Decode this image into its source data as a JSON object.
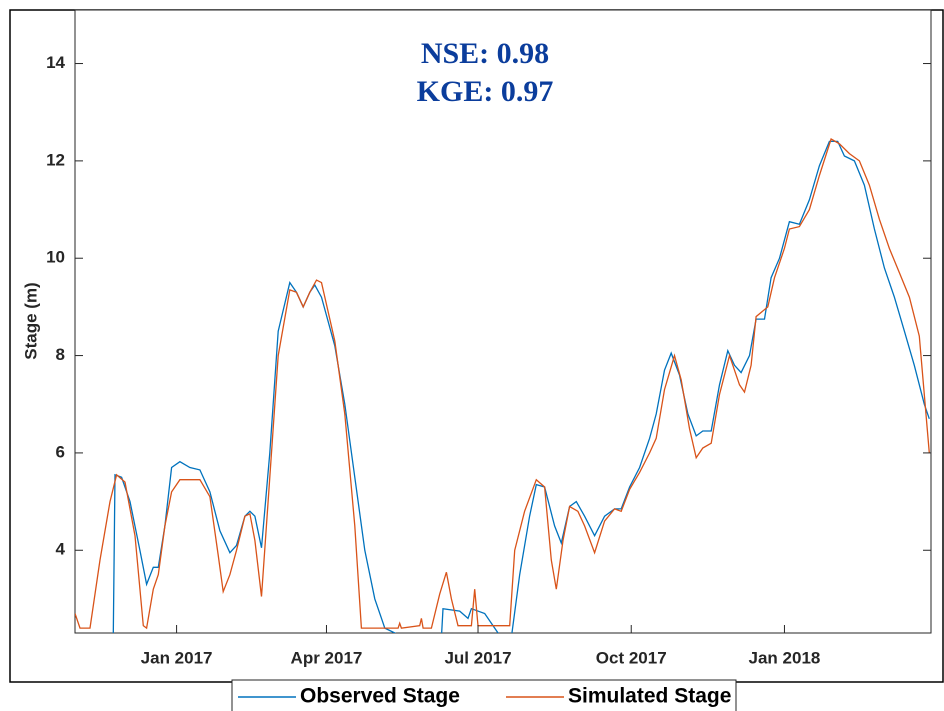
{
  "chart_data": {
    "type": "line",
    "ylabel": "Stage (m)",
    "annotations": [
      "NSE:   0.98",
      "KGE:  0.97"
    ],
    "xlim": [
      "2016-11-01",
      "2018-03-30"
    ],
    "xticks": [
      {
        "value": "2017-01-01",
        "label": "Jan 2017"
      },
      {
        "value": "2017-04-01",
        "label": "Apr 2017"
      },
      {
        "value": "2017-07-01",
        "label": "Jul 2017"
      },
      {
        "value": "2017-10-01",
        "label": "Oct 2017"
      },
      {
        "value": "2018-01-01",
        "label": "Jan 2018"
      }
    ],
    "ylim": [
      2.3,
      15.1
    ],
    "yticks": [
      4,
      6,
      8,
      10,
      12,
      14
    ],
    "grid": false,
    "legend": "bottom",
    "series": [
      {
        "name": "Observed Stage",
        "color": "#0072bd",
        "x": [
          "2016-11-24",
          "2016-11-25",
          "2016-11-29",
          "2016-12-04",
          "2016-12-10",
          "2016-12-14",
          "2016-12-18",
          "2016-12-21",
          "2016-12-25",
          "2016-12-29",
          "2017-01-03",
          "2017-01-09",
          "2017-01-15",
          "2017-01-21",
          "2017-01-27",
          "2017-02-02",
          "2017-02-06",
          "2017-02-11",
          "2017-02-14",
          "2017-02-17",
          "2017-02-21",
          "2017-02-26",
          "2017-03-03",
          "2017-03-10",
          "2017-03-14",
          "2017-03-18",
          "2017-03-22",
          "2017-03-25",
          "2017-03-29",
          "2017-04-06",
          "2017-04-12",
          "2017-04-18",
          "2017-04-24",
          "2017-04-30",
          "2017-05-06",
          "2017-05-12",
          "2017-05-18",
          "2017-05-22",
          "2017-06-01",
          "2017-06-09",
          "2017-06-10",
          "2017-06-20",
          "2017-06-25",
          "2017-06-27",
          "2017-07-05",
          "2017-07-11",
          "2017-07-17",
          "2017-07-21",
          "2017-07-26",
          "2017-08-01",
          "2017-08-05",
          "2017-08-10",
          "2017-08-16",
          "2017-08-20",
          "2017-08-25",
          "2017-08-29",
          "2017-09-03",
          "2017-09-09",
          "2017-09-15",
          "2017-09-21",
          "2017-09-25",
          "2017-09-30",
          "2017-10-06",
          "2017-10-12",
          "2017-10-16",
          "2017-10-21",
          "2017-10-25",
          "2017-10-30",
          "2017-11-04",
          "2017-11-09",
          "2017-11-13",
          "2017-11-18",
          "2017-11-23",
          "2017-11-28",
          "2017-12-02",
          "2017-12-06",
          "2017-12-11",
          "2017-12-15",
          "2017-12-20",
          "2017-12-24",
          "2017-12-29",
          "2018-01-04",
          "2018-01-10",
          "2018-01-16",
          "2018-01-22",
          "2018-01-28",
          "2018-02-02",
          "2018-02-06",
          "2018-02-12",
          "2018-02-18",
          "2018-02-24",
          "2018-03-02",
          "2018-03-08",
          "2018-03-14",
          "2018-03-20",
          "2018-03-26",
          "2018-03-29"
        ],
        "values": [
          2.3,
          5.55,
          5.5,
          5.0,
          4.0,
          3.3,
          3.65,
          3.65,
          4.5,
          5.7,
          5.82,
          5.7,
          5.65,
          5.2,
          4.4,
          3.95,
          4.1,
          4.7,
          4.8,
          4.7,
          4.05,
          6.0,
          8.5,
          9.5,
          9.3,
          9.0,
          9.3,
          9.45,
          9.2,
          8.2,
          7.0,
          5.5,
          4.0,
          3.0,
          2.4,
          2.3,
          2.2,
          2.1,
          null,
          2.2,
          2.8,
          2.75,
          2.6,
          2.8,
          2.7,
          2.4,
          2.1,
          2.2,
          3.5,
          4.7,
          5.35,
          5.3,
          4.5,
          4.15,
          4.9,
          5.0,
          4.7,
          4.3,
          4.7,
          4.85,
          4.85,
          5.3,
          5.7,
          6.3,
          6.8,
          7.7,
          8.05,
          7.6,
          6.8,
          6.35,
          6.45,
          6.45,
          7.4,
          8.1,
          7.8,
          7.65,
          8.0,
          8.75,
          8.75,
          9.6,
          10.0,
          10.75,
          10.7,
          11.2,
          11.9,
          12.4,
          12.4,
          12.1,
          12.0,
          11.5,
          10.6,
          9.8,
          9.2,
          8.5,
          7.8,
          7.0,
          6.7
        ]
      },
      {
        "name": "Simulated Stage",
        "color": "#d95319",
        "x": [
          "2016-11-01",
          "2016-11-04",
          "2016-11-10",
          "2016-11-16",
          "2016-11-22",
          "2016-11-26",
          "2016-12-01",
          "2016-12-07",
          "2016-12-12",
          "2016-12-14",
          "2016-12-18",
          "2016-12-21",
          "2016-12-25",
          "2016-12-29",
          "2017-01-03",
          "2017-01-15",
          "2017-01-21",
          "2017-01-26",
          "2017-01-29",
          "2017-02-02",
          "2017-02-06",
          "2017-02-11",
          "2017-02-14",
          "2017-02-17",
          "2017-02-21",
          "2017-02-26",
          "2017-03-03",
          "2017-03-10",
          "2017-03-14",
          "2017-03-18",
          "2017-03-22",
          "2017-03-26",
          "2017-03-29",
          "2017-04-06",
          "2017-04-12",
          "2017-04-18",
          "2017-04-22",
          "2017-05-14",
          "2017-05-15",
          "2017-05-16",
          "2017-05-27",
          "2017-05-28",
          "2017-05-29",
          "2017-06-03",
          "2017-06-08",
          "2017-06-12",
          "2017-06-15",
          "2017-06-19",
          "2017-06-27",
          "2017-06-29",
          "2017-07-01",
          "2017-07-20",
          "2017-07-23",
          "2017-07-29",
          "2017-08-05",
          "2017-08-10",
          "2017-08-14",
          "2017-08-17",
          "2017-08-21",
          "2017-08-25",
          "2017-08-30",
          "2017-09-03",
          "2017-09-09",
          "2017-09-15",
          "2017-09-21",
          "2017-09-25",
          "2017-09-30",
          "2017-10-06",
          "2017-10-12",
          "2017-10-16",
          "2017-10-21",
          "2017-10-27",
          "2017-10-31",
          "2017-11-05",
          "2017-11-09",
          "2017-11-13",
          "2017-11-18",
          "2017-11-23",
          "2017-11-29",
          "2017-12-05",
          "2017-12-08",
          "2017-12-12",
          "2017-12-15",
          "2017-12-22",
          "2017-12-26",
          "2018-01-01",
          "2018-01-04",
          "2018-01-10",
          "2018-01-16",
          "2018-01-22",
          "2018-01-29",
          "2018-02-03",
          "2018-02-09",
          "2018-02-15",
          "2018-02-21",
          "2018-02-27",
          "2018-03-05",
          "2018-03-11",
          "2018-03-17",
          "2018-03-23",
          "2018-03-29"
        ],
        "values": [
          2.7,
          2.4,
          2.4,
          3.8,
          5.0,
          5.55,
          5.4,
          4.3,
          2.45,
          2.4,
          3.2,
          3.5,
          4.5,
          5.2,
          5.45,
          5.45,
          5.1,
          3.9,
          3.15,
          3.5,
          4.0,
          4.7,
          4.75,
          4.2,
          3.05,
          5.5,
          8.0,
          9.35,
          9.3,
          9.0,
          9.3,
          9.55,
          9.5,
          8.3,
          6.8,
          4.5,
          2.4,
          2.4,
          2.5,
          2.4,
          2.45,
          2.6,
          2.4,
          2.4,
          3.1,
          3.55,
          3.0,
          2.45,
          2.45,
          3.2,
          2.45,
          2.45,
          4.0,
          4.8,
          5.45,
          5.3,
          3.8,
          3.2,
          4.2,
          4.9,
          4.8,
          4.5,
          3.95,
          4.6,
          4.85,
          4.8,
          5.25,
          5.6,
          6.0,
          6.3,
          7.3,
          8.0,
          7.5,
          6.5,
          5.9,
          6.1,
          6.2,
          7.2,
          8.0,
          7.4,
          7.25,
          7.8,
          8.8,
          9.0,
          9.6,
          10.2,
          10.6,
          10.65,
          11.0,
          11.7,
          12.45,
          12.35,
          12.15,
          12.0,
          11.5,
          10.8,
          10.2,
          9.7,
          9.2,
          8.4,
          6.0
        ]
      }
    ]
  }
}
